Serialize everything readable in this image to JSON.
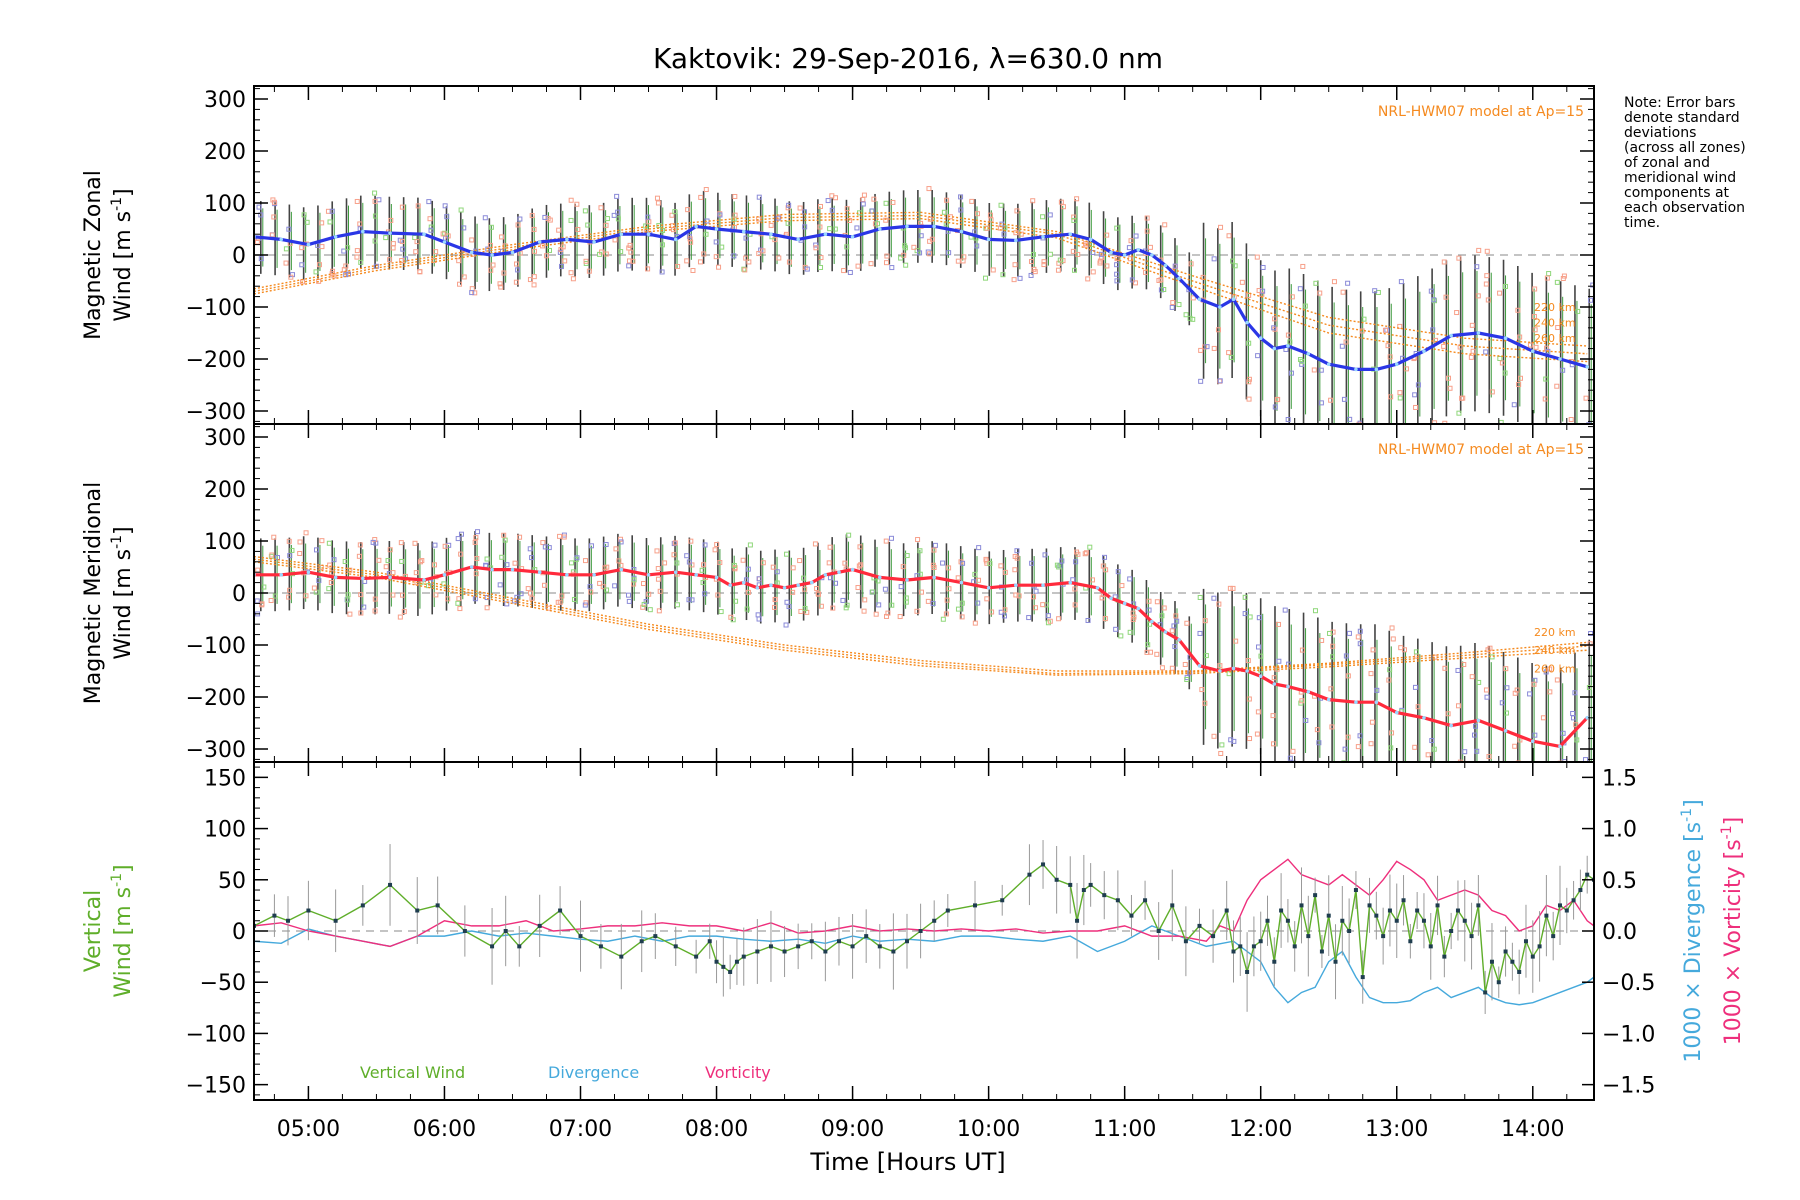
{
  "title": "Kaktovik: 29-Sep-2016, λ=630.0 nm",
  "note": [
    "Note: Error bars",
    "denote standard",
    "deviations",
    "(across all zones)",
    "of zonal and",
    "meridional wind",
    "components at",
    "each observation",
    "time."
  ],
  "xaxis": {
    "label": "Time [Hours UT]",
    "range_hours": [
      4.6,
      14.45
    ],
    "ticks": [
      5,
      6,
      7,
      8,
      9,
      10,
      11,
      12,
      13,
      14
    ],
    "tick_labels": [
      "05:00",
      "06:00",
      "07:00",
      "08:00",
      "09:00",
      "10:00",
      "11:00",
      "12:00",
      "13:00",
      "14:00"
    ]
  },
  "colors": {
    "zonal_mean": "#2a36e6",
    "meridional_mean": "#ff2a3c",
    "model": "#f58a1f",
    "zone_orange": "#f7a08a",
    "zone_blue": "#8a8ad8",
    "zone_green": "#8fd77a",
    "vertical": "#5fae2a",
    "divergence": "#45a9dc",
    "vorticity": "#ee2f7c",
    "error_bar": "#444444"
  },
  "chart_data": [
    {
      "id": "zonal",
      "type": "line",
      "ylabel_lines": [
        "Magnetic Zonal",
        "Wind [m s",
        "-1",
        "]"
      ],
      "ylim": [
        -325,
        325
      ],
      "yticks": [
        -300,
        -200,
        -100,
        0,
        100,
        200,
        300
      ],
      "model_label": "NRL-HWM07 model at Ap=15",
      "model_altitudes": [
        "220 km",
        "240 km",
        "260 km"
      ],
      "series": [
        {
          "x": [
            4.6,
            4.8,
            5.0,
            5.2,
            5.4,
            5.6,
            5.85,
            6.0,
            6.2,
            6.35,
            6.5,
            6.7,
            6.9,
            7.1,
            7.3,
            7.5,
            7.7,
            7.85,
            8.0,
            8.2,
            8.4,
            8.6,
            8.8,
            9.0,
            9.2,
            9.4,
            9.6,
            9.8,
            10.0,
            10.2,
            10.4,
            10.6,
            10.75,
            10.9,
            11.0,
            11.1,
            11.2,
            11.3,
            11.4,
            11.55,
            11.7,
            11.8,
            11.9,
            12.0,
            12.1,
            12.2,
            12.35,
            12.5,
            12.7,
            12.85,
            13.0,
            13.2,
            13.4,
            13.6,
            13.8,
            14.0,
            14.2,
            14.4
          ],
          "y": [
            35,
            30,
            20,
            35,
            45,
            42,
            40,
            25,
            5,
            0,
            5,
            25,
            30,
            25,
            40,
            40,
            30,
            55,
            50,
            45,
            40,
            30,
            40,
            35,
            50,
            55,
            55,
            45,
            30,
            28,
            35,
            40,
            30,
            5,
            0,
            10,
            0,
            -20,
            -45,
            -85,
            -100,
            -85,
            -130,
            -160,
            -180,
            -175,
            -190,
            -210,
            -220,
            -220,
            -210,
            -185,
            -155,
            -150,
            -160,
            -185,
            -200,
            -215
          ]
        },
        {
          "name": "220 km",
          "x": [
            4.6,
            5.5,
            6.5,
            7.5,
            8.5,
            9.5,
            10.5,
            11.5,
            12.5,
            13.5,
            14.4
          ],
          "y": [
            -65,
            -20,
            20,
            55,
            78,
            82,
            45,
            -40,
            -120,
            -160,
            -175
          ]
        },
        {
          "name": "240 km",
          "x": [
            4.6,
            5.5,
            6.5,
            7.5,
            8.5,
            9.5,
            10.5,
            11.5,
            12.5,
            13.5,
            14.4
          ],
          "y": [
            -70,
            -25,
            15,
            50,
            72,
            76,
            40,
            -50,
            -135,
            -175,
            -190
          ]
        },
        {
          "name": "260 km",
          "x": [
            4.6,
            5.5,
            6.5,
            7.5,
            8.5,
            9.5,
            10.5,
            11.5,
            12.5,
            13.5,
            14.4
          ],
          "y": [
            -75,
            -30,
            10,
            45,
            66,
            70,
            33,
            -60,
            -150,
            -190,
            -205
          ]
        }
      ]
    },
    {
      "id": "meridional",
      "type": "line",
      "ylabel_lines": [
        "Magnetic Meridional",
        "Wind [m s",
        "-1",
        "]"
      ],
      "ylim": [
        -325,
        325
      ],
      "yticks": [
        -300,
        -200,
        -100,
        0,
        100,
        200,
        300
      ],
      "model_label": "NRL-HWM07 model at Ap=15",
      "model_altitudes": [
        "220 km",
        "240 km",
        "260 km"
      ],
      "series": [
        {
          "x": [
            4.6,
            4.8,
            5.0,
            5.2,
            5.4,
            5.6,
            5.85,
            6.0,
            6.2,
            6.35,
            6.5,
            6.7,
            6.9,
            7.1,
            7.3,
            7.5,
            7.7,
            7.85,
            8.0,
            8.1,
            8.2,
            8.3,
            8.4,
            8.5,
            8.6,
            8.7,
            8.8,
            8.9,
            9.0,
            9.2,
            9.4,
            9.6,
            9.8,
            10.0,
            10.2,
            10.4,
            10.6,
            10.8,
            10.9,
            11.0,
            11.1,
            11.2,
            11.3,
            11.4,
            11.55,
            11.7,
            11.8,
            11.9,
            12.0,
            12.1,
            12.2,
            12.35,
            12.5,
            12.7,
            12.85,
            13.0,
            13.2,
            13.4,
            13.6,
            13.8,
            14.0,
            14.2,
            14.4
          ],
          "y": [
            35,
            35,
            40,
            30,
            28,
            30,
            25,
            35,
            50,
            45,
            45,
            40,
            35,
            35,
            45,
            35,
            40,
            35,
            30,
            15,
            20,
            10,
            15,
            10,
            15,
            20,
            35,
            40,
            45,
            30,
            25,
            30,
            20,
            10,
            15,
            15,
            20,
            10,
            -10,
            -20,
            -30,
            -55,
            -75,
            -90,
            -140,
            -150,
            -145,
            -150,
            -160,
            -175,
            -180,
            -190,
            -205,
            -210,
            -210,
            -230,
            -240,
            -255,
            -245,
            -265,
            -285,
            -295,
            -240
          ]
        },
        {
          "name": "220 km",
          "x": [
            4.6,
            5.5,
            6.5,
            7.5,
            8.5,
            9.5,
            10.5,
            11.5,
            12.5,
            13.5,
            14.4
          ],
          "y": [
            70,
            40,
            -10,
            -60,
            -100,
            -130,
            -150,
            -150,
            -135,
            -115,
            -95
          ]
        },
        {
          "name": "240 km",
          "x": [
            4.6,
            5.5,
            6.5,
            7.5,
            8.5,
            9.5,
            10.5,
            11.5,
            12.5,
            13.5,
            14.4
          ],
          "y": [
            65,
            35,
            -15,
            -65,
            -105,
            -135,
            -155,
            -152,
            -138,
            -120,
            -102
          ]
        },
        {
          "name": "260 km",
          "x": [
            4.6,
            5.5,
            6.5,
            7.5,
            8.5,
            9.5,
            10.5,
            11.5,
            12.5,
            13.5,
            14.4
          ],
          "y": [
            60,
            30,
            -20,
            -70,
            -110,
            -140,
            -158,
            -155,
            -142,
            -125,
            -110
          ]
        }
      ]
    },
    {
      "id": "vertical",
      "type": "line",
      "ylabel_vertical_lines": [
        "Vertical",
        "Wind [m s",
        "-1",
        "]"
      ],
      "ylim": [
        -165,
        165
      ],
      "yticks": [
        -150,
        -100,
        -50,
        0,
        50,
        100,
        150
      ],
      "y2lim": [
        -1.65,
        1.65
      ],
      "y2ticks": [
        -1.5,
        -1.0,
        -0.5,
        0.0,
        0.5,
        1.0,
        1.5
      ],
      "y2tick_labels": [
        "−1.5",
        "−1.0",
        "−0.5",
        "0.0",
        "0.5",
        "1.0",
        "1.5"
      ],
      "y2label_divergence": "1000 × Divergence [s",
      "y2label_vorticity": "1000 × Vorticity [s",
      "y2label_sup": "-1",
      "legend": [
        "Vertical Wind",
        "Divergence",
        "Vorticity"
      ],
      "series": [
        {
          "name": "Vertical Wind",
          "x": [
            4.6,
            4.75,
            4.85,
            5.0,
            5.2,
            5.4,
            5.6,
            5.8,
            5.95,
            6.15,
            6.35,
            6.45,
            6.55,
            6.7,
            6.85,
            7.0,
            7.15,
            7.3,
            7.45,
            7.55,
            7.7,
            7.85,
            7.95,
            8.0,
            8.05,
            8.1,
            8.15,
            8.2,
            8.3,
            8.4,
            8.5,
            8.6,
            8.7,
            8.8,
            8.9,
            9.0,
            9.1,
            9.2,
            9.3,
            9.4,
            9.5,
            9.6,
            9.7,
            9.9,
            10.1,
            10.3,
            10.4,
            10.5,
            10.6,
            10.65,
            10.7,
            10.75,
            10.85,
            10.95,
            11.05,
            11.15,
            11.25,
            11.35,
            11.45,
            11.55,
            11.65,
            11.75,
            11.8,
            11.85,
            11.9,
            11.95,
            12.0,
            12.05,
            12.1,
            12.15,
            12.2,
            12.25,
            12.3,
            12.35,
            12.4,
            12.45,
            12.5,
            12.55,
            12.6,
            12.65,
            12.7,
            12.75,
            12.8,
            12.85,
            12.9,
            12.95,
            13.0,
            13.05,
            13.1,
            13.15,
            13.2,
            13.25,
            13.3,
            13.35,
            13.4,
            13.45,
            13.5,
            13.55,
            13.6,
            13.65,
            13.7,
            13.75,
            13.8,
            13.85,
            13.9,
            13.95,
            14.0,
            14.05,
            14.1,
            14.15,
            14.2,
            14.25,
            14.3,
            14.35,
            14.4,
            14.45
          ],
          "y": [
            5,
            15,
            10,
            20,
            10,
            25,
            45,
            20,
            25,
            0,
            -15,
            0,
            -15,
            5,
            20,
            -5,
            -15,
            -25,
            -10,
            -5,
            -15,
            -25,
            -10,
            -30,
            -35,
            -40,
            -30,
            -25,
            -20,
            -15,
            -20,
            -15,
            -10,
            -20,
            -10,
            -15,
            -5,
            -15,
            -20,
            -10,
            0,
            10,
            20,
            25,
            30,
            55,
            65,
            50,
            45,
            10,
            40,
            45,
            35,
            30,
            15,
            30,
            0,
            25,
            -10,
            5,
            -5,
            20,
            -20,
            -15,
            -40,
            -15,
            -10,
            10,
            -30,
            20,
            10,
            -15,
            25,
            -5,
            35,
            -20,
            15,
            -30,
            10,
            0,
            40,
            -45,
            25,
            15,
            -5,
            20,
            10,
            30,
            -10,
            20,
            10,
            -15,
            25,
            -25,
            0,
            20,
            10,
            -5,
            25,
            -60,
            -30,
            -50,
            -20,
            -30,
            -40,
            -10,
            -25,
            -15,
            15,
            -5,
            25,
            20,
            30,
            40,
            55,
            50
          ]
        },
        {
          "name": "Divergence",
          "x": [
            4.6,
            4.8,
            5.0,
            5.2,
            5.4,
            5.6,
            5.8,
            6.0,
            6.2,
            6.4,
            6.6,
            6.8,
            7.0,
            7.2,
            7.4,
            7.6,
            7.8,
            8.0,
            8.2,
            8.4,
            8.6,
            8.8,
            9.0,
            9.2,
            9.4,
            9.6,
            9.8,
            10.0,
            10.2,
            10.4,
            10.6,
            10.8,
            11.0,
            11.2,
            11.4,
            11.6,
            11.8,
            12.0,
            12.1,
            12.2,
            12.3,
            12.4,
            12.5,
            12.6,
            12.7,
            12.8,
            12.9,
            13.0,
            13.1,
            13.2,
            13.3,
            13.4,
            13.5,
            13.6,
            13.7,
            13.8,
            13.9,
            14.0,
            14.1,
            14.2,
            14.3,
            14.4,
            14.45
          ],
          "y": [
            -0.1,
            -0.12,
            0.02,
            -0.05,
            -0.1,
            -0.15,
            -0.05,
            -0.05,
            0.0,
            -0.05,
            -0.02,
            -0.05,
            -0.08,
            -0.1,
            -0.05,
            -0.1,
            -0.05,
            -0.05,
            -0.08,
            -0.1,
            -0.08,
            -0.12,
            -0.05,
            -0.1,
            -0.08,
            -0.1,
            -0.05,
            -0.05,
            -0.08,
            -0.1,
            -0.05,
            -0.2,
            -0.1,
            0.05,
            -0.05,
            -0.15,
            -0.1,
            -0.3,
            -0.55,
            -0.7,
            -0.6,
            -0.55,
            -0.3,
            -0.2,
            -0.45,
            -0.65,
            -0.7,
            -0.7,
            -0.68,
            -0.6,
            -0.55,
            -0.65,
            -0.6,
            -0.55,
            -0.65,
            -0.7,
            -0.72,
            -0.7,
            -0.65,
            -0.6,
            -0.55,
            -0.5,
            -0.45
          ]
        },
        {
          "name": "Vorticity",
          "x": [
            4.6,
            4.8,
            5.0,
            5.2,
            5.4,
            5.6,
            5.8,
            6.0,
            6.2,
            6.4,
            6.6,
            6.8,
            7.0,
            7.2,
            7.4,
            7.6,
            7.8,
            8.0,
            8.2,
            8.4,
            8.6,
            8.8,
            9.0,
            9.2,
            9.4,
            9.6,
            9.8,
            10.0,
            10.2,
            10.4,
            10.6,
            10.8,
            11.0,
            11.2,
            11.4,
            11.6,
            11.7,
            11.8,
            11.9,
            12.0,
            12.1,
            12.2,
            12.3,
            12.4,
            12.5,
            12.6,
            12.7,
            12.8,
            12.9,
            13.0,
            13.1,
            13.2,
            13.3,
            13.4,
            13.5,
            13.6,
            13.7,
            13.8,
            13.9,
            14.0,
            14.1,
            14.2,
            14.3,
            14.4,
            14.45
          ],
          "y": [
            0.05,
            0.08,
            0.0,
            -0.05,
            -0.1,
            -0.15,
            -0.05,
            0.1,
            0.05,
            0.05,
            0.1,
            0.0,
            0.02,
            0.05,
            0.05,
            0.08,
            0.05,
            0.05,
            0.0,
            0.08,
            -0.02,
            0.0,
            0.05,
            0.0,
            0.02,
            0.0,
            0.02,
            0.0,
            0.02,
            -0.02,
            0.0,
            0.0,
            0.05,
            -0.05,
            -0.05,
            -0.1,
            0.05,
            0.0,
            0.3,
            0.5,
            0.6,
            0.7,
            0.55,
            0.5,
            0.45,
            0.55,
            0.45,
            0.35,
            0.5,
            0.68,
            0.6,
            0.5,
            0.3,
            0.35,
            0.4,
            0.35,
            0.2,
            0.15,
            0.0,
            0.05,
            0.25,
            0.2,
            0.3,
            0.1,
            0.05
          ]
        }
      ]
    }
  ]
}
